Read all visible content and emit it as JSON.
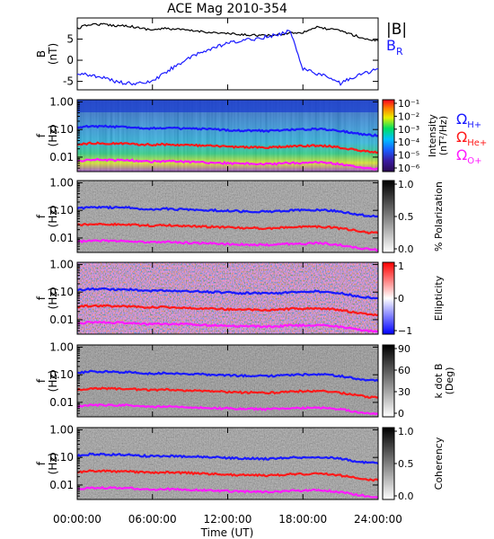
{
  "title": "ACE Mag 2010-354",
  "x_ticks": [
    "00:00:00",
    "06:00:00",
    "12:00:00",
    "18:00:00",
    "24:00:00"
  ],
  "x_title": "Time (UT)",
  "legend_top": {
    "b": "|B|",
    "br_main": "B",
    "br_sub": "R"
  },
  "legend_freq": [
    {
      "main": "Ω",
      "sub": "H+",
      "color": "#1a1aff"
    },
    {
      "main": "Ω",
      "sub": "He+",
      "color": "#ff1a1a"
    },
    {
      "main": "Ω",
      "sub": "O+",
      "color": "#ff1aff"
    }
  ],
  "colors": {
    "b_total": "#000000",
    "b_r": "#1a1aff",
    "h_plus": "#1a1aff",
    "he_plus": "#ff1a1a",
    "o_plus": "#ff1aff"
  },
  "panels": [
    {
      "id": "bfield",
      "ylabel": "B",
      "yunit": "(nT)",
      "yticks": [
        "5",
        "0",
        "-5"
      ]
    },
    {
      "id": "intensity",
      "ylabel": "f",
      "yunit": "(Hz)",
      "yticks": [
        "1.00",
        "0.10",
        "0.01"
      ],
      "cbar_title": "Intensity",
      "cbar_unit": "(nT²/Hz)",
      "cbar_ticks": [
        "10⁻¹",
        "10⁻²",
        "10⁻³",
        "10⁻⁴",
        "10⁻⁵",
        "10⁻⁶"
      ]
    },
    {
      "id": "polarization",
      "ylabel": "f",
      "yunit": "(Hz)",
      "yticks": [
        "1.00",
        "0.10",
        "0.01"
      ],
      "cbar_title": "% Polarization",
      "cbar_ticks": [
        "1.0",
        "0.5",
        "0.0"
      ]
    },
    {
      "id": "ellipticity",
      "ylabel": "f",
      "yunit": "(Hz)",
      "yticks": [
        "1.00",
        "0.10",
        "0.01"
      ],
      "cbar_title": "Ellipticity",
      "cbar_ticks": [
        "1",
        "0",
        "−1"
      ]
    },
    {
      "id": "kdotb",
      "ylabel": "f",
      "yunit": "(Hz)",
      "yticks": [
        "1.00",
        "0.10",
        "0.01"
      ],
      "cbar_title": "k dot B",
      "cbar_unit": "(Deg)",
      "cbar_ticks": [
        "90",
        "60",
        "30",
        "0"
      ]
    },
    {
      "id": "coherency",
      "ylabel": "f",
      "yunit": "(Hz)",
      "yticks": [
        "1.00",
        "0.10",
        "0.01"
      ],
      "cbar_title": "Coherency",
      "cbar_ticks": [
        "1.0",
        "0.5",
        "0.0"
      ]
    }
  ],
  "chart_data": {
    "type": "line",
    "x_hours": [
      0,
      1,
      2,
      3,
      4,
      5,
      6,
      7,
      8,
      9,
      10,
      11,
      12,
      13,
      14,
      15,
      16,
      17,
      18,
      19,
      20,
      21,
      22,
      23,
      24
    ],
    "xlim": [
      0,
      24
    ],
    "b_field": {
      "ylim": [
        -7,
        10
      ],
      "series": [
        {
          "name": "|B|",
          "values": [
            7.5,
            8.5,
            8.5,
            8.2,
            8.2,
            7.6,
            7.2,
            7.5,
            7.3,
            7.0,
            6.8,
            6.5,
            6.3,
            6.0,
            6.0,
            5.8,
            6.0,
            6.5,
            6.6,
            7.8,
            7.4,
            7.0,
            6.0,
            5.0,
            4.6
          ]
        },
        {
          "name": "B_R",
          "values": [
            -3.0,
            -3.5,
            -4.0,
            -5.0,
            -5.5,
            -5.5,
            -5.0,
            -3.0,
            -1.0,
            0.5,
            2.0,
            3.0,
            4.0,
            4.5,
            5.0,
            5.5,
            6.0,
            7.0,
            -2.0,
            -3.0,
            -4.0,
            -5.5,
            -4.0,
            -3.0,
            -2.0
          ]
        }
      ]
    },
    "spectrogram_frequency_range_hz": [
      0.003,
      1.2
    ],
    "gyrofrequencies_hz": {
      "H+": [
        0.115,
        0.13,
        0.13,
        0.125,
        0.125,
        0.115,
        0.11,
        0.115,
        0.11,
        0.107,
        0.104,
        0.1,
        0.096,
        0.092,
        0.092,
        0.089,
        0.092,
        0.1,
        0.1,
        0.105,
        0.1,
        0.09,
        0.075,
        0.065,
        0.06
      ],
      "He+": [
        0.029,
        0.032,
        0.032,
        0.031,
        0.031,
        0.029,
        0.028,
        0.029,
        0.028,
        0.027,
        0.026,
        0.025,
        0.024,
        0.023,
        0.023,
        0.022,
        0.023,
        0.025,
        0.025,
        0.026,
        0.025,
        0.022,
        0.019,
        0.016,
        0.015
      ],
      "O+": [
        0.0072,
        0.008,
        0.008,
        0.0078,
        0.0078,
        0.0072,
        0.0069,
        0.0072,
        0.0069,
        0.0067,
        0.0065,
        0.0062,
        0.006,
        0.0058,
        0.0058,
        0.0056,
        0.0058,
        0.0062,
        0.0062,
        0.0065,
        0.0062,
        0.0055,
        0.0047,
        0.004,
        0.0037
      ]
    }
  }
}
